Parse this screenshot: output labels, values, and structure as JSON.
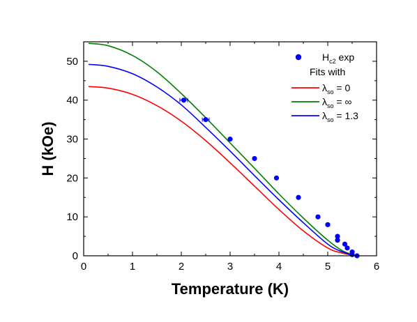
{
  "chart_data": {
    "type": "scatter",
    "xlabel": "Temperature (K)",
    "ylabel": "H (kOe)",
    "xlim": [
      0,
      6
    ],
    "ylim": [
      0,
      55
    ],
    "x_ticks": [
      "0",
      "1",
      "2",
      "3",
      "4",
      "5",
      "6"
    ],
    "y_ticks": [
      "0",
      "10",
      "20",
      "30",
      "40",
      "50"
    ],
    "legend": {
      "position": "top-right",
      "exp": {
        "main": "H",
        "sub": "c2",
        "tail": " exp"
      },
      "fits_title": "Fits with",
      "fits": [
        {
          "main": "λ",
          "sub": "so",
          "tail": " = 0"
        },
        {
          "main": "λ",
          "sub": "so",
          "tail": " = ∞"
        },
        {
          "main": "λ",
          "sub": "so",
          "tail": " = 1.3"
        }
      ]
    },
    "series": [
      {
        "kind": "points",
        "color": "#0000ff",
        "points": [
          {
            "x": 2.05,
            "y": 40.0,
            "xerr": 0.08
          },
          {
            "x": 2.5,
            "y": 35.0,
            "xerr": 0.07
          },
          {
            "x": 3.0,
            "y": 30.0
          },
          {
            "x": 3.5,
            "y": 25.0
          },
          {
            "x": 3.95,
            "y": 20.0
          },
          {
            "x": 4.4,
            "y": 15.0
          },
          {
            "x": 4.8,
            "y": 10.0
          },
          {
            "x": 5.0,
            "y": 8.0
          },
          {
            "x": 5.2,
            "y": 5.0
          },
          {
            "x": 5.2,
            "y": 4.0
          },
          {
            "x": 5.35,
            "y": 3.0
          },
          {
            "x": 5.4,
            "y": 2.0
          },
          {
            "x": 5.5,
            "y": 1.0
          },
          {
            "x": 5.5,
            "y": 0.3
          },
          {
            "x": 5.6,
            "y": 0.0
          }
        ]
      },
      {
        "kind": "line",
        "color": "#ff0000",
        "x": [
          0.1,
          0.5,
          1.0,
          1.5,
          2.0,
          2.5,
          3.0,
          3.5,
          4.0,
          4.5,
          5.0,
          5.3,
          5.58
        ],
        "y": [
          43.5,
          43.1,
          41.5,
          38.6,
          34.6,
          29.6,
          23.9,
          17.9,
          11.9,
          6.4,
          2.0,
          0.7,
          0.0
        ]
      },
      {
        "kind": "line",
        "color": "#008000",
        "x": [
          0.1,
          0.5,
          1.0,
          1.5,
          2.0,
          2.5,
          3.0,
          3.5,
          4.0,
          4.5,
          5.0,
          5.3,
          5.58
        ],
        "y": [
          54.6,
          54.0,
          51.5,
          47.3,
          41.7,
          35.5,
          29.0,
          22.5,
          15.9,
          9.7,
          4.0,
          1.3,
          0.0
        ]
      },
      {
        "kind": "line",
        "color": "#0000ff",
        "x": [
          0.1,
          0.5,
          1.0,
          1.5,
          2.0,
          2.5,
          3.0,
          3.5,
          4.0,
          4.5,
          5.0,
          5.3,
          5.58
        ],
        "y": [
          49.2,
          48.7,
          46.8,
          43.4,
          38.8,
          33.0,
          26.9,
          20.6,
          14.4,
          8.5,
          3.0,
          1.0,
          0.0
        ]
      }
    ]
  }
}
